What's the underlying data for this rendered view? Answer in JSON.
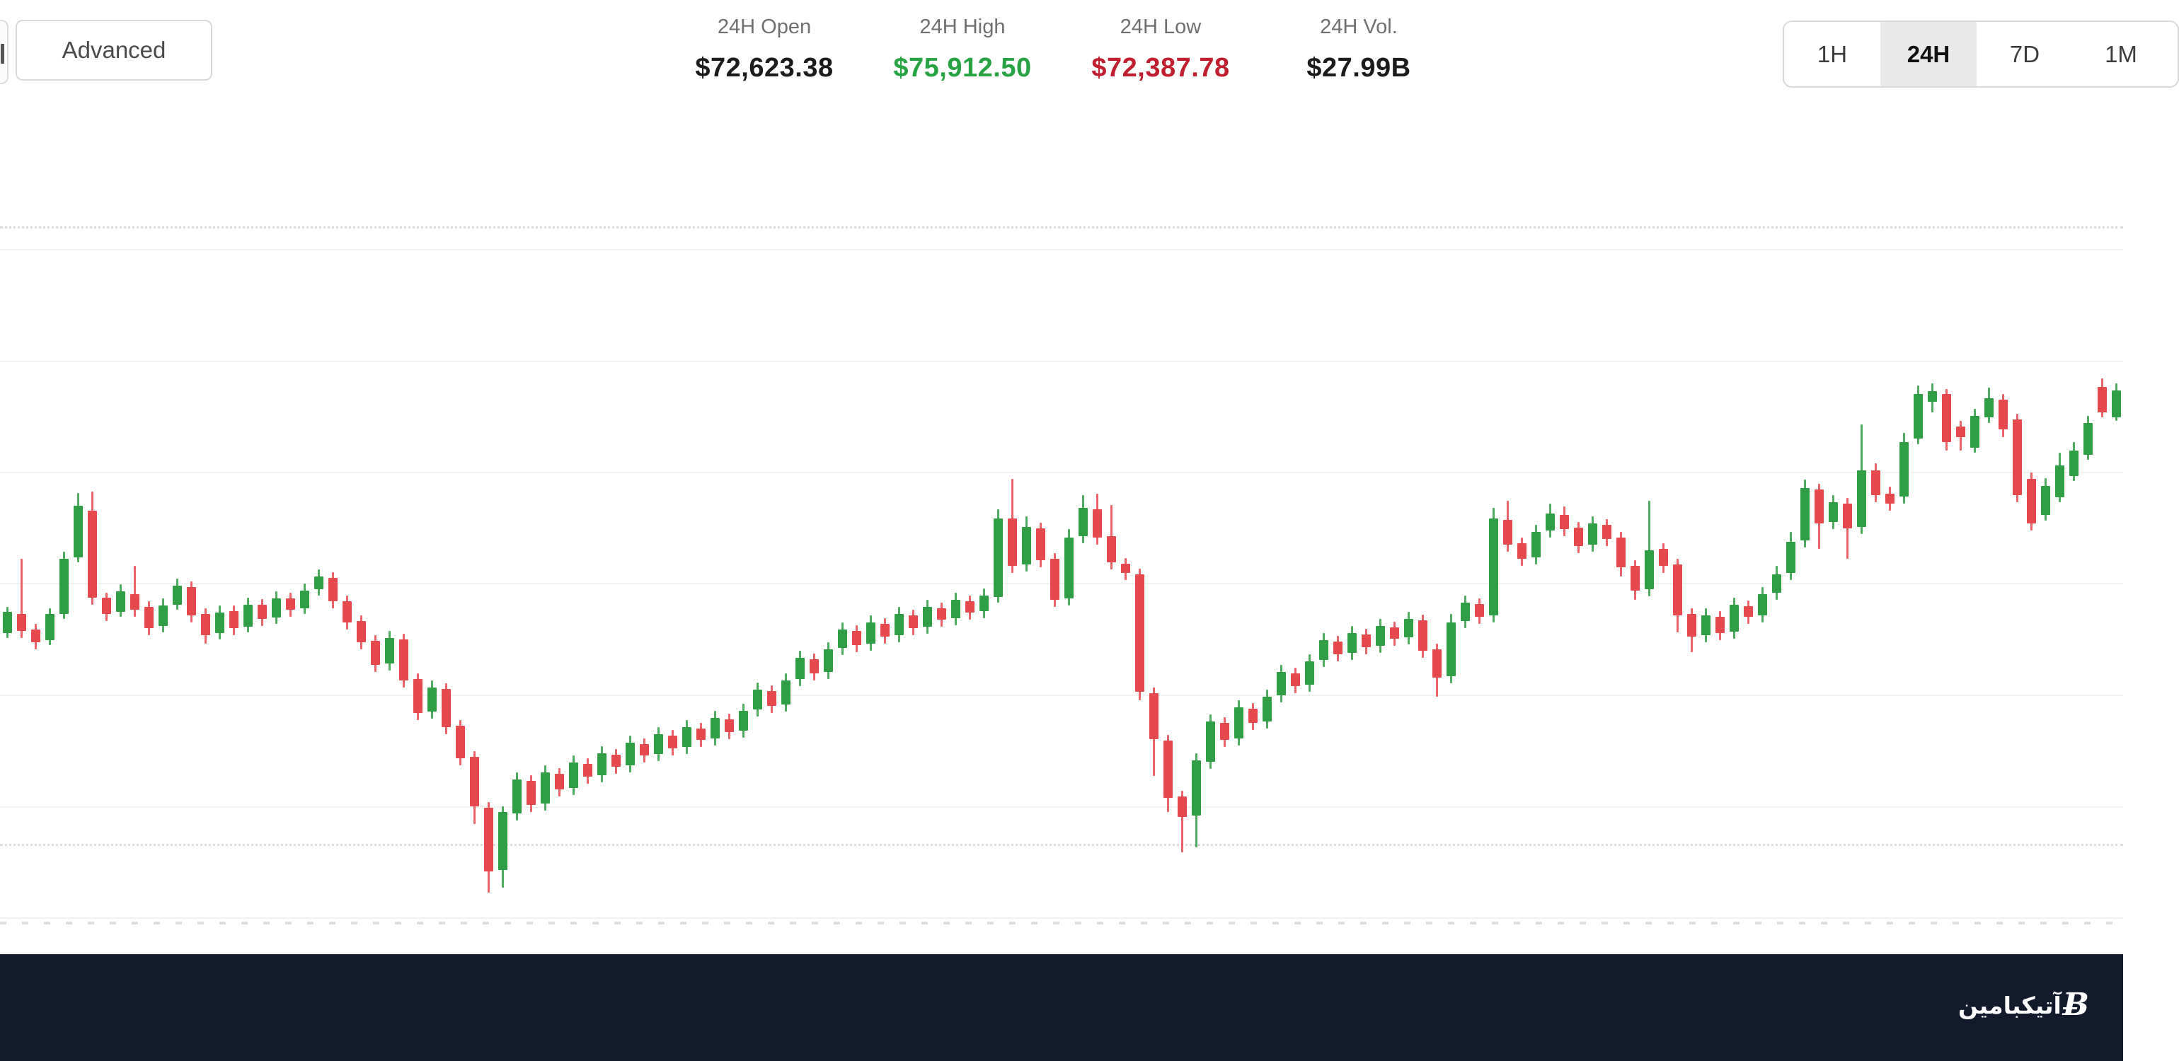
{
  "header": {
    "advanced_label": "Advanced",
    "stats": [
      {
        "label": "24H Open",
        "value": "$72,623.38",
        "color": "#1c1c1c"
      },
      {
        "label": "24H High",
        "value": "$75,912.50",
        "color": "#27a344"
      },
      {
        "label": "24H Low",
        "value": "$72,387.78",
        "color": "#bf1f2f"
      },
      {
        "label": "24H Vol.",
        "value": "$27.99B",
        "color": "#1c1c1c"
      }
    ],
    "intervals": {
      "options": [
        "1H",
        "24H",
        "7D",
        "1M"
      ],
      "selected": "24H"
    }
  },
  "footer": {
    "brand_text": "آتیکبامین",
    "logo_char": "Ƀ"
  },
  "colors": {
    "candle_up": "#2f9e44",
    "candle_down": "#e5484d",
    "stat_up": "#27a344",
    "stat_down": "#bf1f2f",
    "footer_bg": "#121a2c",
    "grid_solid": "#f1f1f1",
    "grid_dotted": "#dcdcdc"
  },
  "chart_data": {
    "type": "candlestick",
    "title": "",
    "xlabel": "",
    "ylabel": "",
    "axis_labels_visible": false,
    "grid": "horizontal-only",
    "price_range_estimate": [
      65500,
      76500
    ],
    "gridlines": {
      "solid_prices": [
        75280,
        73700,
        72130,
        70560,
        68980,
        67400,
        65830
      ],
      "dotted_prices": [
        75600,
        66870
      ]
    },
    "candles_ohlc": [
      [
        69850,
        70220,
        69780,
        70150
      ],
      [
        70120,
        70900,
        69780,
        69880
      ],
      [
        69900,
        69980,
        69620,
        69720
      ],
      [
        69750,
        70200,
        69680,
        70120
      ],
      [
        70120,
        71000,
        70050,
        70900
      ],
      [
        70920,
        71830,
        70850,
        71650
      ],
      [
        71580,
        71850,
        70250,
        70350
      ],
      [
        70350,
        70420,
        70020,
        70120
      ],
      [
        70150,
        70540,
        70080,
        70440
      ],
      [
        70400,
        70800,
        70080,
        70180
      ],
      [
        70220,
        70300,
        69820,
        69920
      ],
      [
        69950,
        70340,
        69860,
        70240
      ],
      [
        70250,
        70620,
        70180,
        70520
      ],
      [
        70500,
        70580,
        70000,
        70100
      ],
      [
        70120,
        70200,
        69700,
        69820
      ],
      [
        69850,
        70240,
        69760,
        70140
      ],
      [
        70160,
        70240,
        69820,
        69920
      ],
      [
        69940,
        70350,
        69860,
        70250
      ],
      [
        70250,
        70330,
        69950,
        70050
      ],
      [
        70070,
        70440,
        69980,
        70340
      ],
      [
        70340,
        70420,
        70080,
        70180
      ],
      [
        70200,
        70550,
        70120,
        70450
      ],
      [
        70470,
        70750,
        70380,
        70650
      ],
      [
        70630,
        70710,
        70200,
        70300
      ],
      [
        70300,
        70380,
        69900,
        70000
      ],
      [
        70020,
        70100,
        69620,
        69720
      ],
      [
        69740,
        69820,
        69300,
        69400
      ],
      [
        69420,
        69880,
        69320,
        69780
      ],
      [
        69760,
        69840,
        69080,
        69180
      ],
      [
        69200,
        69280,
        68620,
        68720
      ],
      [
        68740,
        69180,
        68640,
        69080
      ],
      [
        69060,
        69140,
        68420,
        68520
      ],
      [
        68540,
        68620,
        67980,
        68080
      ],
      [
        68100,
        68180,
        67150,
        67400
      ],
      [
        67380,
        67460,
        66180,
        66480
      ],
      [
        66500,
        67400,
        66250,
        67320
      ],
      [
        67300,
        67880,
        67200,
        67780
      ],
      [
        67760,
        67840,
        67320,
        67420
      ],
      [
        67440,
        67980,
        67340,
        67880
      ],
      [
        67860,
        67940,
        67540,
        67640
      ],
      [
        67660,
        68120,
        67560,
        68020
      ],
      [
        68000,
        68080,
        67720,
        67820
      ],
      [
        67840,
        68250,
        67740,
        68150
      ],
      [
        68130,
        68210,
        67860,
        67960
      ],
      [
        67980,
        68400,
        67880,
        68300
      ],
      [
        68280,
        68360,
        68020,
        68120
      ],
      [
        68140,
        68520,
        68040,
        68420
      ],
      [
        68400,
        68480,
        68120,
        68220
      ],
      [
        68240,
        68620,
        68140,
        68520
      ],
      [
        68500,
        68580,
        68240,
        68340
      ],
      [
        68360,
        68750,
        68260,
        68650
      ],
      [
        68630,
        68710,
        68350,
        68450
      ],
      [
        68470,
        68850,
        68370,
        68750
      ],
      [
        68770,
        69150,
        68670,
        69050
      ],
      [
        69030,
        69110,
        68720,
        68820
      ],
      [
        68840,
        69280,
        68740,
        69180
      ],
      [
        69200,
        69600,
        69100,
        69500
      ],
      [
        69480,
        69560,
        69180,
        69280
      ],
      [
        69300,
        69720,
        69200,
        69620
      ],
      [
        69640,
        70000,
        69540,
        69900
      ],
      [
        69880,
        69960,
        69580,
        69680
      ],
      [
        69700,
        70100,
        69600,
        70000
      ],
      [
        69980,
        70060,
        69700,
        69800
      ],
      [
        69820,
        70220,
        69720,
        70120
      ],
      [
        70100,
        70180,
        69820,
        69920
      ],
      [
        69940,
        70320,
        69840,
        70220
      ],
      [
        70200,
        70280,
        69940,
        70040
      ],
      [
        70060,
        70420,
        69960,
        70320
      ],
      [
        70300,
        70380,
        70040,
        70140
      ],
      [
        70160,
        70480,
        70060,
        70380
      ],
      [
        70360,
        71600,
        70280,
        71470
      ],
      [
        71470,
        72030,
        70700,
        70800
      ],
      [
        70820,
        71500,
        70720,
        71350
      ],
      [
        71330,
        71410,
        70780,
        70880
      ],
      [
        70900,
        70980,
        70220,
        70320
      ],
      [
        70340,
        71320,
        70240,
        71200
      ],
      [
        71220,
        71800,
        71120,
        71620
      ],
      [
        71600,
        71820,
        71100,
        71200
      ],
      [
        71220,
        71660,
        70750,
        70850
      ],
      [
        70830,
        70910,
        70600,
        70700
      ],
      [
        70680,
        70760,
        68900,
        69020
      ],
      [
        69000,
        69080,
        67830,
        68350
      ],
      [
        68330,
        68410,
        67320,
        67520
      ],
      [
        67540,
        67620,
        66750,
        67250
      ],
      [
        67270,
        68150,
        66820,
        68050
      ],
      [
        68030,
        68700,
        67930,
        68600
      ],
      [
        68580,
        68660,
        68240,
        68340
      ],
      [
        68360,
        68900,
        68260,
        68800
      ],
      [
        68780,
        68860,
        68480,
        68580
      ],
      [
        68600,
        69050,
        68500,
        68950
      ],
      [
        68970,
        69400,
        68870,
        69300
      ],
      [
        69280,
        69360,
        69000,
        69100
      ],
      [
        69120,
        69550,
        69020,
        69450
      ],
      [
        69470,
        69850,
        69370,
        69750
      ],
      [
        69730,
        69810,
        69450,
        69550
      ],
      [
        69570,
        69950,
        69470,
        69850
      ],
      [
        69830,
        69910,
        69550,
        69650
      ],
      [
        69670,
        70050,
        69570,
        69950
      ],
      [
        69930,
        70010,
        69670,
        69770
      ],
      [
        69790,
        70150,
        69690,
        70050
      ],
      [
        70030,
        70110,
        69500,
        69600
      ],
      [
        69620,
        69700,
        68950,
        69220
      ],
      [
        69240,
        70120,
        69140,
        70000
      ],
      [
        70020,
        70380,
        69920,
        70280
      ],
      [
        70260,
        70340,
        69980,
        70080
      ],
      [
        70100,
        71620,
        70000,
        71470
      ],
      [
        71450,
        71720,
        71000,
        71100
      ],
      [
        71120,
        71200,
        70800,
        70900
      ],
      [
        70920,
        71380,
        70820,
        71280
      ],
      [
        71300,
        71680,
        71200,
        71540
      ],
      [
        71520,
        71640,
        71220,
        71320
      ],
      [
        71340,
        71420,
        70980,
        71080
      ],
      [
        71100,
        71500,
        71000,
        71400
      ],
      [
        71380,
        71460,
        71080,
        71180
      ],
      [
        71200,
        71280,
        70650,
        70780
      ],
      [
        70800,
        70880,
        70320,
        70450
      ],
      [
        70470,
        71720,
        70370,
        71020
      ],
      [
        71040,
        71120,
        70700,
        70800
      ],
      [
        70820,
        70900,
        69860,
        70100
      ],
      [
        70120,
        70200,
        69580,
        69800
      ],
      [
        69820,
        70200,
        69720,
        70100
      ],
      [
        70080,
        70160,
        69750,
        69850
      ],
      [
        69870,
        70350,
        69770,
        70250
      ],
      [
        70230,
        70310,
        69980,
        70080
      ],
      [
        70100,
        70500,
        70000,
        70400
      ],
      [
        70420,
        70800,
        70320,
        70680
      ],
      [
        70700,
        71280,
        70600,
        71140
      ],
      [
        71160,
        72020,
        71060,
        71900
      ],
      [
        71880,
        71960,
        71040,
        71400
      ],
      [
        71420,
        71800,
        71320,
        71700
      ],
      [
        71680,
        71760,
        70900,
        71330
      ],
      [
        71350,
        72800,
        71250,
        72150
      ],
      [
        72150,
        72250,
        71700,
        71800
      ],
      [
        71820,
        71920,
        71580,
        71680
      ],
      [
        71780,
        72680,
        71680,
        72550
      ],
      [
        72600,
        73350,
        72520,
        73230
      ],
      [
        73120,
        73380,
        72970,
        73270
      ],
      [
        73230,
        73300,
        72430,
        72550
      ],
      [
        72770,
        72850,
        72430,
        72620
      ],
      [
        72470,
        73020,
        72400,
        72920
      ],
      [
        72900,
        73320,
        72820,
        73170
      ],
      [
        73150,
        73230,
        72620,
        72730
      ],
      [
        72870,
        72950,
        71700,
        71800
      ],
      [
        72030,
        72120,
        71300,
        71400
      ],
      [
        71520,
        72040,
        71440,
        71930
      ],
      [
        71770,
        72400,
        71700,
        72220
      ],
      [
        72070,
        72550,
        72000,
        72430
      ],
      [
        72370,
        72920,
        72300,
        72820
      ],
      [
        73330,
        73450,
        72900,
        72970
      ],
      [
        72900,
        73380,
        72850,
        73280
      ]
    ],
    "legend": [],
    "annotations": []
  }
}
